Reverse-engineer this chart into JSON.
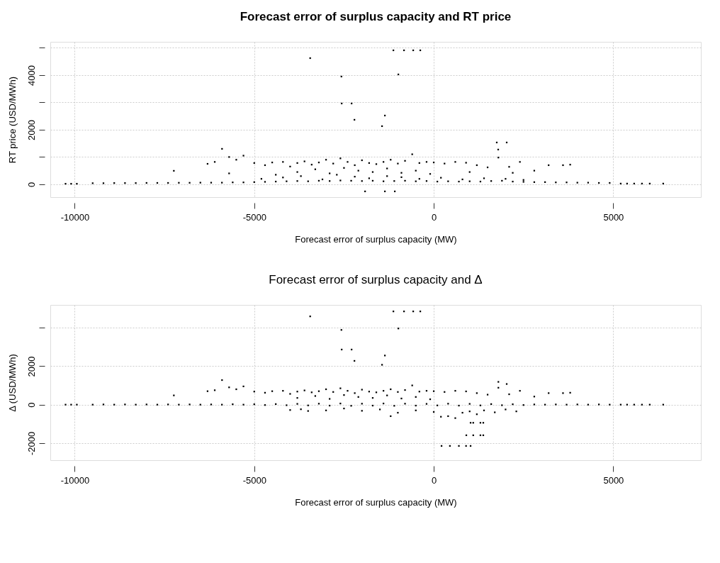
{
  "chart_data": [
    {
      "type": "scatter",
      "title": "Forecast error of surplus capacity and RT price",
      "xlabel": "Forecast error of surplus capacity (MW)",
      "ylabel": "RT price (USD/MWh)",
      "xlim": [
        -10680,
        7440
      ],
      "ylim": [
        -470,
        5220
      ],
      "xticks": [
        -10000,
        -5000,
        0,
        5000
      ],
      "yticks": [
        0,
        {
          "value": 1000,
          "label": null
        },
        2000,
        {
          "value": 3000,
          "label": null
        },
        4000,
        {
          "value": 5000,
          "label": null
        }
      ],
      "grid": true,
      "marker": "square",
      "series": [
        {
          "color": "#000000",
          "x": [
            -9500,
            -9200,
            -8900,
            -8600,
            -8300,
            -8000,
            -7700,
            -7400,
            -7100,
            -6800,
            -6500,
            -6200,
            -5900,
            -5600,
            -5300,
            -5000,
            -4700,
            -4400,
            -4100,
            -3800,
            -3500,
            -3200,
            -2900,
            -2600,
            -2300,
            -2000,
            -1700,
            -1400,
            -1100,
            -800,
            -500,
            -200,
            100,
            400,
            700,
            1000,
            1300,
            1600,
            1900,
            2200,
            2500,
            2800,
            3100,
            3400,
            3700,
            4000,
            4300,
            4600,
            4900,
            -4800,
            -4200,
            -3700,
            -3100,
            -2700,
            -2200,
            -1800,
            -1300,
            -900,
            -400,
            200,
            800,
            1400,
            2000,
            2500,
            -6300,
            -6100,
            -5700,
            -5500,
            -5300,
            -5000,
            -4700,
            -4500,
            -4200,
            -4000,
            -3800,
            -3600,
            -3400,
            -3200,
            -3000,
            -2800,
            -2600,
            -2400,
            -2200,
            -2000,
            -1800,
            -1600,
            -1400,
            -1200,
            -1000,
            -800,
            -600,
            -400,
            -200,
            0,
            300,
            600,
            900,
            1200,
            1500,
            1800,
            2100,
            2400,
            2800,
            3200,
            3600,
            3800,
            -3800,
            -3300,
            -2900,
            -2500,
            -2100,
            -1700,
            -1300,
            -900,
            -500,
            -100,
            -5700,
            1000,
            2200,
            -4400,
            -3442,
            -1124,
            -828,
            -572,
            -375,
            -986,
            -2572,
            -2564,
            -2288,
            -2209,
            -1361,
            -1440,
            1755,
            2032,
            1795,
            -5897,
            -1913,
            -1361,
            -1085,
            5207,
            5385,
            5582,
            5799,
            6016,
            6391,
            -10256,
            -10100,
            -9941,
            -7239
          ],
          "values": [
            40,
            40,
            45,
            45,
            45,
            50,
            50,
            50,
            55,
            55,
            60,
            60,
            60,
            70,
            70,
            80,
            90,
            100,
            110,
            120,
            110,
            130,
            120,
            140,
            130,
            120,
            130,
            110,
            120,
            130,
            110,
            120,
            100,
            110,
            100,
            110,
            100,
            120,
            130,
            100,
            90,
            80,
            80,
            70,
            70,
            60,
            60,
            50,
            50,
            200,
            250,
            300,
            180,
            350,
            280,
            220,
            300,
            260,
            200,
            240,
            180,
            220,
            200,
            160,
            750,
            820,
            1000,
            900,
            1050,
            780,
            700,
            800,
            820,
            650,
            780,
            840,
            720,
            800,
            900,
            760,
            950,
            820,
            700,
            880,
            780,
            740,
            820,
            900,
            760,
            860,
            1100,
            780,
            820,
            800,
            760,
            820,
            790,
            700,
            620,
            980,
            640,
            820,
            500,
            700,
            700,
            720,
            450,
            550,
            400,
            600,
            500,
            450,
            580,
            420,
            500,
            380,
            400,
            450,
            420,
            350,
            4623,
            4909,
            4909,
            4909,
            4909,
            4026,
            3948,
            2961,
            2961,
            2364,
            2519,
            2130,
            1532,
            1532,
            1273,
            1299,
            -260,
            -260,
            -260,
            26,
            26,
            26,
            26,
            26,
            26,
            20,
            20,
            20,
            494
          ]
        }
      ]
    },
    {
      "type": "scatter",
      "title": "Forecast error of surplus capacity and Δ",
      "xlabel": "Forecast error of surplus capacity (MW)",
      "ylabel": "Δ (USD/MWh)",
      "xlim": [
        -10680,
        7440
      ],
      "ylim": [
        -2890,
        5190
      ],
      "xticks": [
        -10000,
        -5000,
        0,
        5000
      ],
      "yticks": [
        -2000,
        0,
        2000,
        {
          "value": 4000,
          "label": null
        }
      ],
      "grid": true,
      "marker": "square",
      "series": [
        {
          "color": "#000000",
          "x": [
            -9500,
            -9200,
            -8900,
            -8600,
            -8300,
            -8000,
            -7700,
            -7400,
            -7100,
            -6800,
            -6500,
            -6200,
            -5900,
            -5600,
            -5300,
            -5000,
            -4700,
            -4400,
            -4100,
            -3800,
            -3500,
            -3200,
            -2900,
            -2600,
            -2300,
            -2000,
            -1700,
            -1400,
            -1100,
            -800,
            -500,
            -200,
            100,
            400,
            700,
            1000,
            1300,
            1600,
            1900,
            2200,
            2500,
            2800,
            3100,
            3400,
            3700,
            4000,
            4300,
            4600,
            4900,
            -6300,
            -6100,
            -5700,
            -5500,
            -5300,
            -5000,
            -4700,
            -4500,
            -4200,
            -4000,
            -3800,
            -3600,
            -3400,
            -3200,
            -3000,
            -2800,
            -2600,
            -2400,
            -2200,
            -2000,
            -1800,
            -1600,
            -1400,
            -1200,
            -1000,
            -800,
            -600,
            -400,
            -200,
            0,
            300,
            600,
            900,
            1200,
            1500,
            1800,
            2100,
            2400,
            2800,
            3200,
            3600,
            3800,
            -3800,
            -3300,
            -2900,
            -2500,
            -2100,
            -1700,
            -1300,
            -900,
            -500,
            -100,
            -4000,
            -3700,
            -3500,
            -3000,
            -2500,
            -2000,
            -1500,
            -1200,
            -1000,
            -500,
            0,
            200,
            400,
            600,
            800,
            1000,
            1200,
            1400,
            1700,
            2000,
            2300,
            1026,
            1100,
            1300,
            1380,
            907,
            1100,
            1300,
            1380,
            217,
            450,
            700,
            900,
            1026,
            -3442,
            -1124,
            -828,
            -572,
            -375,
            -986,
            -2572,
            -2564,
            -2288,
            -2209,
            -1361,
            -1440,
            1800,
            2032,
            -5897,
            -7239,
            5207,
            5385,
            5582,
            5799,
            6016,
            6391,
            -10256,
            -10100,
            -9941
          ],
          "values": [
            0,
            10,
            0,
            10,
            0,
            10,
            0,
            10,
            0,
            10,
            0,
            10,
            0,
            20,
            0,
            20,
            -20,
            30,
            -30,
            40,
            -40,
            50,
            -50,
            60,
            -60,
            50,
            -50,
            60,
            -60,
            50,
            -50,
            40,
            -40,
            50,
            -50,
            40,
            -40,
            30,
            -30,
            20,
            -20,
            10,
            0,
            10,
            0,
            10,
            0,
            10,
            0,
            700,
            750,
            900,
            800,
            950,
            680,
            620,
            700,
            720,
            560,
            680,
            740,
            640,
            700,
            800,
            660,
            850,
            720,
            600,
            780,
            680,
            640,
            720,
            800,
            660,
            760,
            1000,
            680,
            720,
            700,
            660,
            720,
            690,
            600,
            520,
            880,
            540,
            720,
            420,
            600,
            600,
            620,
            350,
            450,
            300,
            500,
            400,
            350,
            480,
            320,
            400,
            280,
            -280,
            -240,
            -330,
            -300,
            -200,
            -320,
            -250,
            -600,
            -420,
            -300,
            -380,
            -630,
            -600,
            -700,
            -420,
            -350,
            -500,
            -300,
            -400,
            -250,
            -350,
            -944,
            -944,
            -944,
            -944,
            -1593,
            -1593,
            -1593,
            -1593,
            -2148,
            -2148,
            -2148,
            -2148,
            -2148,
            4593,
            4852,
            4852,
            4852,
            4852,
            3963,
            3889,
            2867,
            2867,
            2278,
            2556,
            2074,
            1185,
            1074,
            1278,
            481,
            0,
            0,
            0,
            0,
            0,
            0,
            0,
            0,
            0
          ]
        }
      ]
    }
  ]
}
